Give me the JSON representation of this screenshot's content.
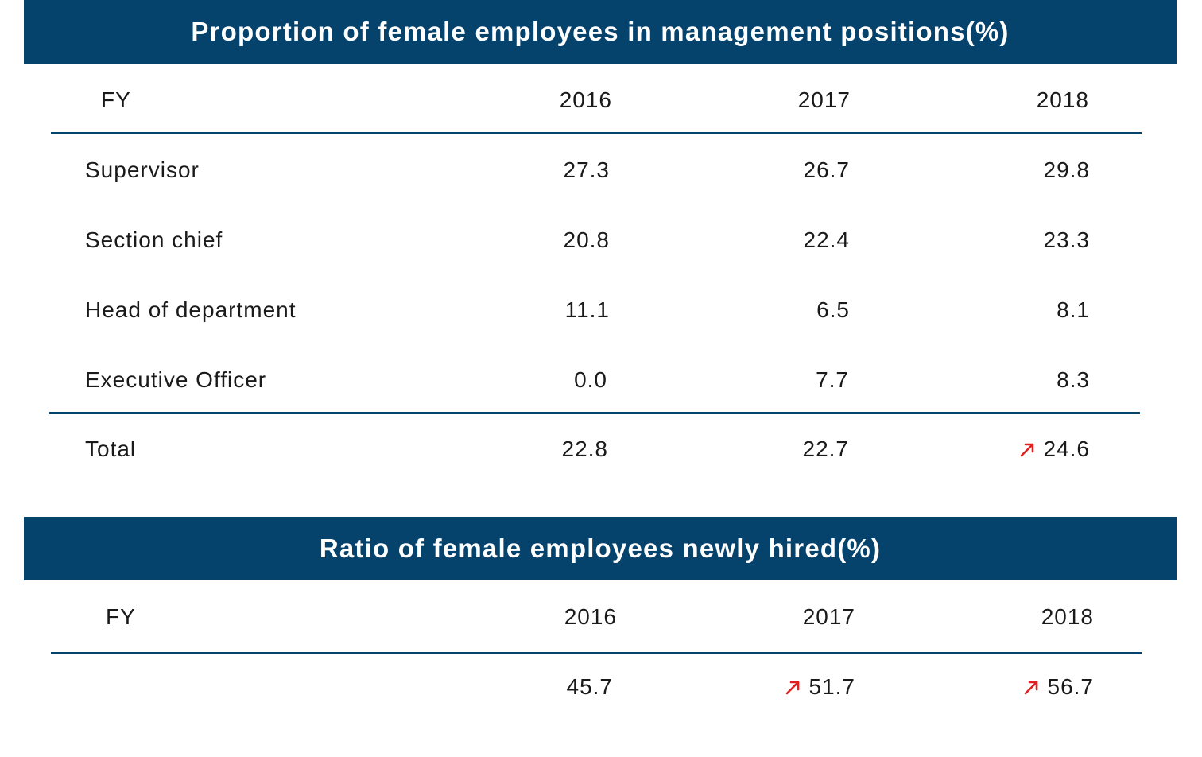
{
  "colors": {
    "banner": "#05426c",
    "rule": "#05426c",
    "up_arrow": "#e02020"
  },
  "table1": {
    "title": "Proportion of female employees in management positions(%)",
    "header": {
      "fy": "FY",
      "y2016": "2016",
      "y2017": "2017",
      "y2018": "2018"
    },
    "rows": [
      {
        "label": "Supervisor",
        "v2016": "27.3",
        "v2017": "26.7",
        "v2018": "29.8"
      },
      {
        "label": "Section chief",
        "v2016": "20.8",
        "v2017": "22.4",
        "v2018": "23.3"
      },
      {
        "label": "Head of department",
        "v2016": "11.1",
        "v2017": "6.5",
        "v2018": "8.1"
      },
      {
        "label": "Executive Officer",
        "v2016": "0.0",
        "v2017": "7.7",
        "v2018": "8.3"
      }
    ],
    "total": {
      "label": "Total",
      "v2016": "22.8",
      "v2017": "22.7",
      "v2018": "24.6",
      "v2018_icon": "trend-up-icon"
    }
  },
  "table2": {
    "title": "Ratio of female employees newly hired(%)",
    "header": {
      "fy": "FY",
      "y2016": "2016",
      "y2017": "2017",
      "y2018": "2018"
    },
    "values": {
      "v2016": "45.7",
      "v2017": "51.7",
      "v2018": "56.7",
      "v2017_icon": "trend-up-icon",
      "v2018_icon": "trend-up-icon"
    }
  }
}
